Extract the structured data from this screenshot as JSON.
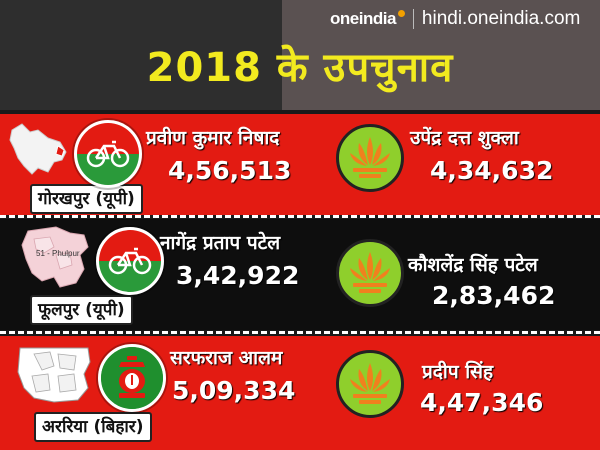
{
  "brand": {
    "logo": "oneindia",
    "url": "hindi.oneindia.com"
  },
  "title": "2018 के उपचुनाव",
  "map_label_phulpur": "51 - Phulpur",
  "contests": [
    {
      "place": "गोरखपुर (यूपी)",
      "winner": {
        "name": "प्रवीण कुमार निषाद",
        "votes": "4,56,513",
        "symbol": "bicycle-icon"
      },
      "runner_up": {
        "name": "उपेंद्र दत्त शुक्ला",
        "votes": "4,34,632",
        "symbol": "lotus-icon"
      }
    },
    {
      "place": "फूलपुर (यूपी)",
      "winner": {
        "name": "नागेंद्र प्रताप पटेल",
        "votes": "3,42,922",
        "symbol": "bicycle-icon"
      },
      "runner_up": {
        "name": "कौशलेंद्र सिंह पटेल",
        "votes": "2,83,462",
        "symbol": "lotus-icon"
      }
    },
    {
      "place": "अररिया (बिहार)",
      "winner": {
        "name": "सरफराज आलम",
        "votes": "5,09,334",
        "symbol": "lantern-icon"
      },
      "runner_up": {
        "name": "प्रदीप सिंह",
        "votes": "4,47,346",
        "symbol": "lotus-icon"
      }
    }
  ],
  "colors": {
    "title": "#f2ea1f",
    "red_panel": "#e31b12",
    "black_panel": "#0e0e0e",
    "bjp_green": "#8fcf2c",
    "sp_red": "#e31b12",
    "sp_green": "#2a9a3a"
  }
}
